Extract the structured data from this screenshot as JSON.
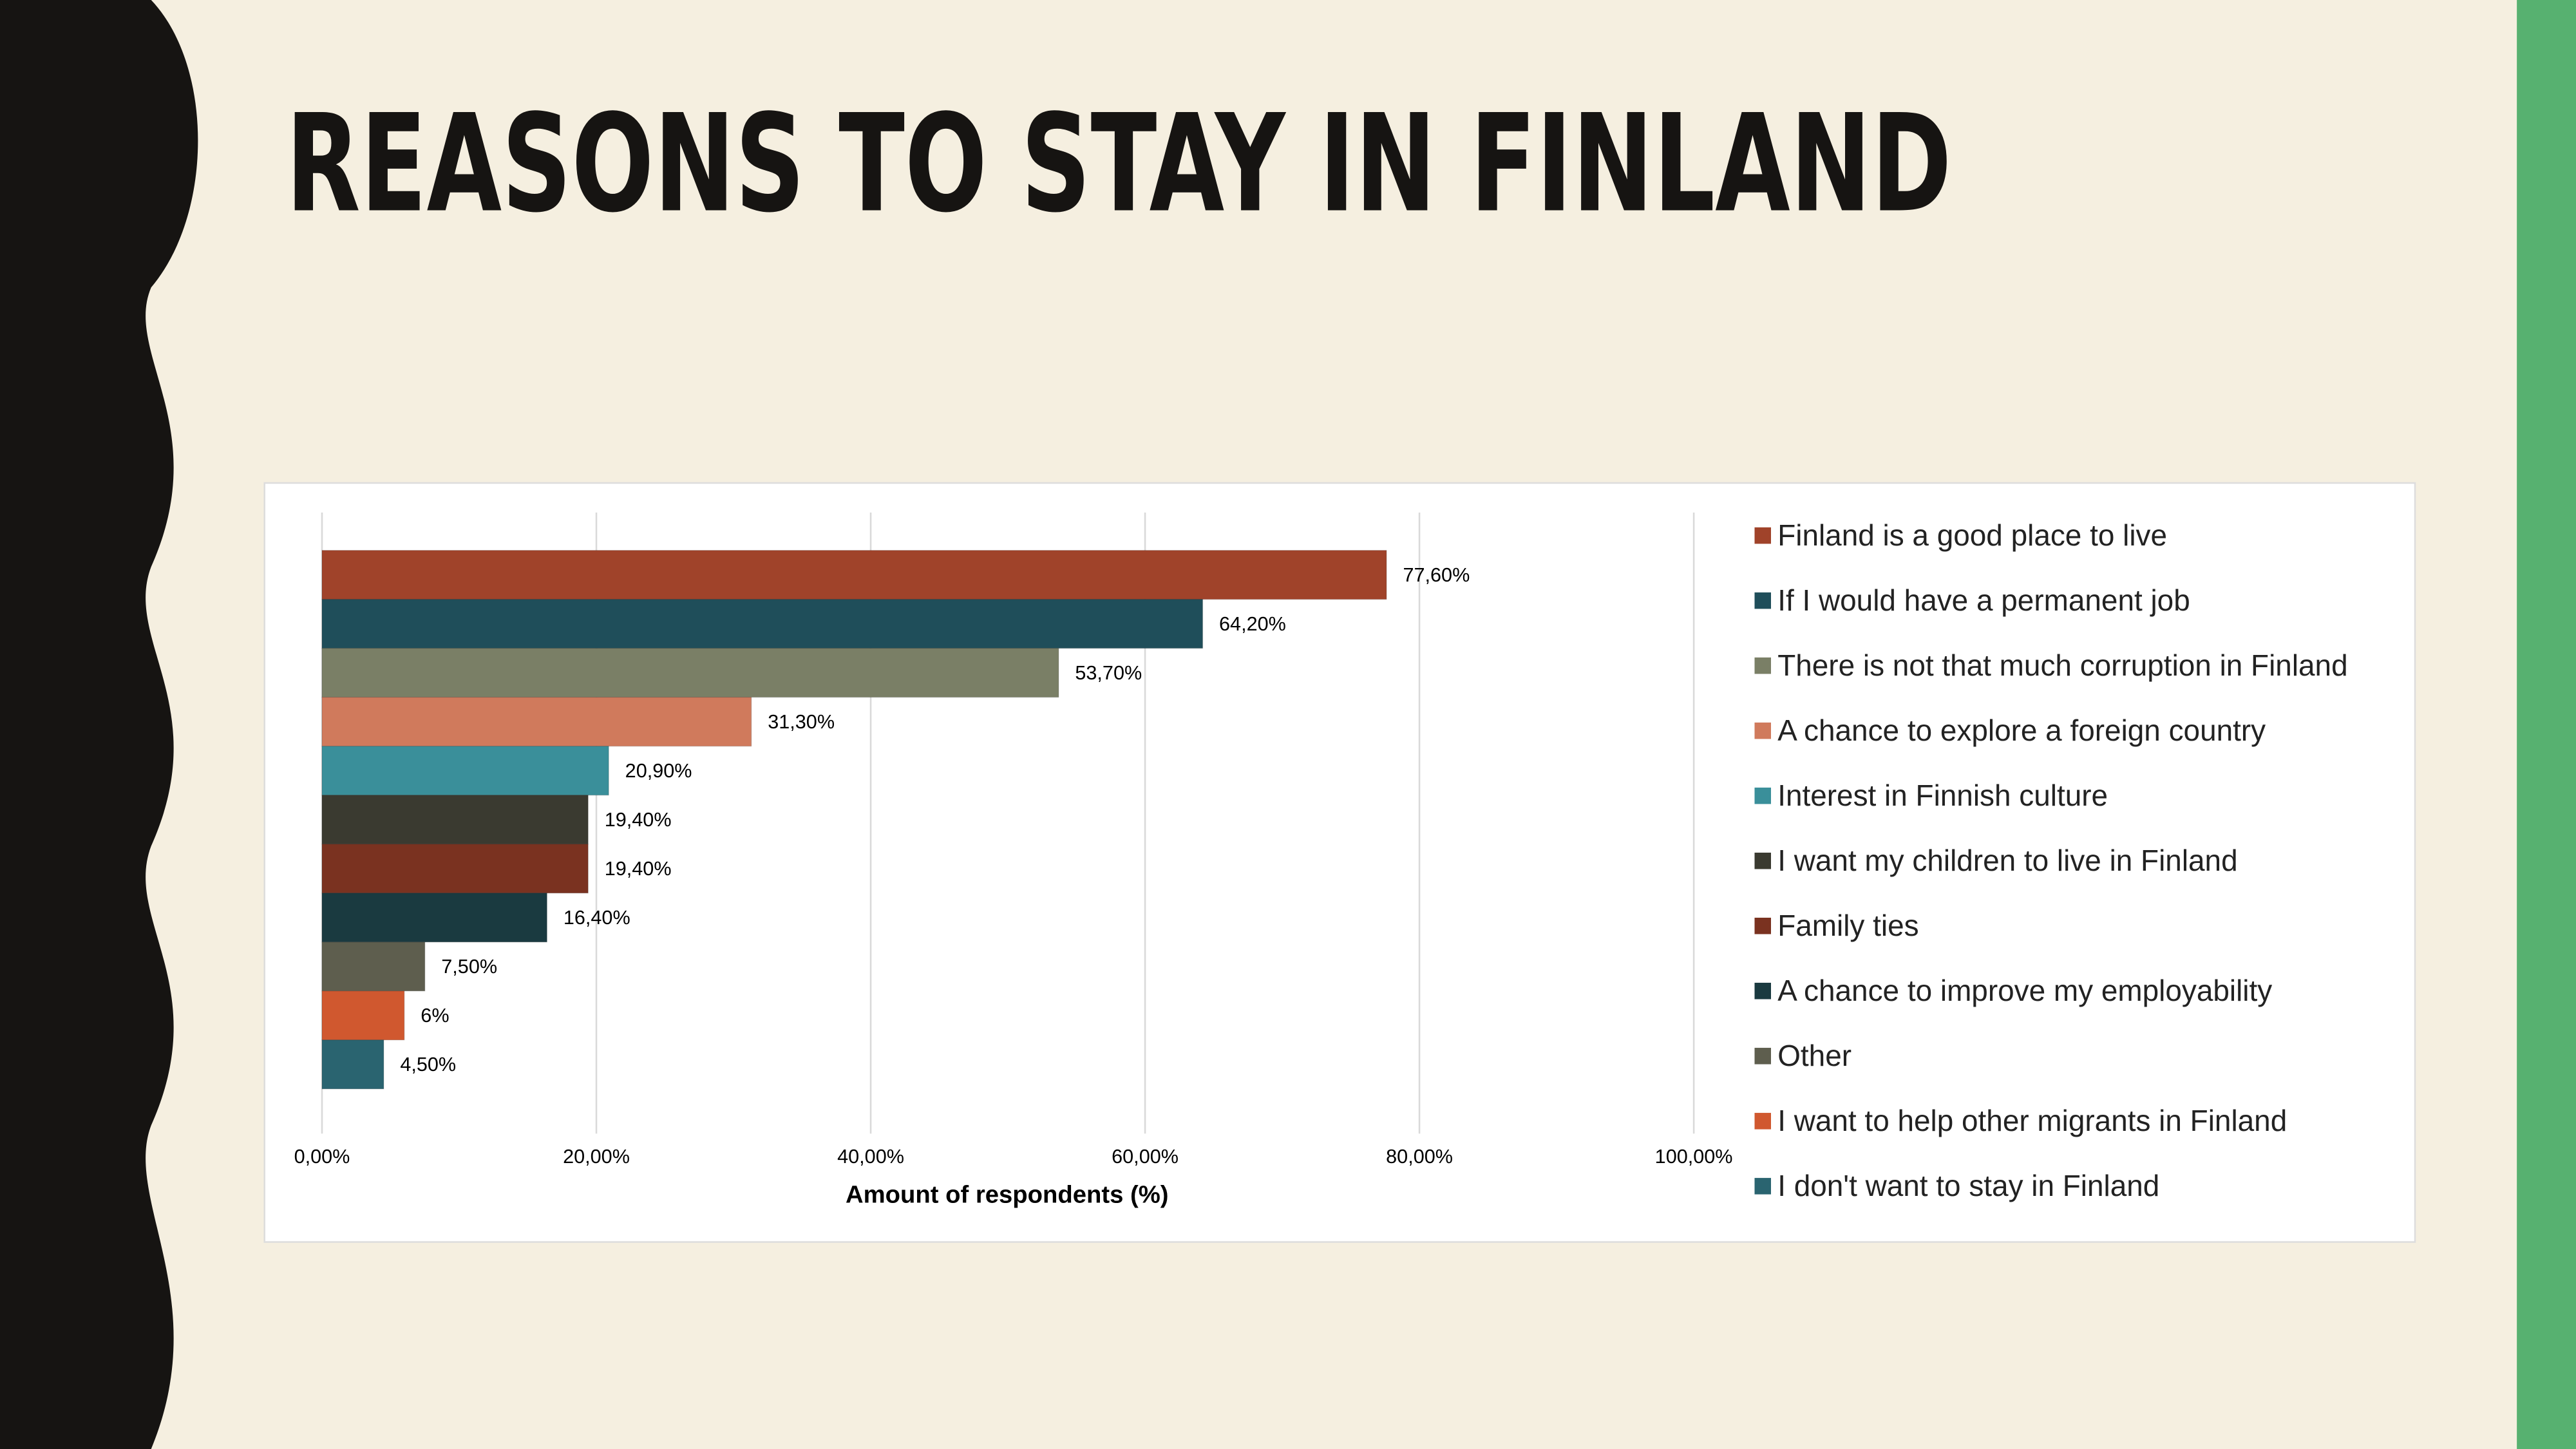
{
  "chart_data": {
    "type": "bar",
    "orientation": "horizontal",
    "title": "REASONS TO STAY IN FINLAND",
    "x_label": "Amount of respondents (%)",
    "xlim": [
      0,
      100
    ],
    "xticks": [
      {
        "value": 0,
        "label": "0,00%"
      },
      {
        "value": 20,
        "label": "20,00%"
      },
      {
        "value": 40,
        "label": "40,00%"
      },
      {
        "value": 60,
        "label": "60,00%"
      },
      {
        "value": 80,
        "label": "80,00%"
      },
      {
        "value": 100,
        "label": "100,00%"
      }
    ],
    "grid": true,
    "legend": "right",
    "series": [
      {
        "name": "Finland is a good place to live",
        "color": "#a0432a",
        "values": [
          77.6
        ],
        "value_labels": [
          "77,60%"
        ]
      },
      {
        "name": "If I would have a permanent job",
        "color": "#1f4e5a",
        "values": [
          64.2
        ],
        "value_labels": [
          "64,20%"
        ]
      },
      {
        "name": "There is not that much corruption in Finland",
        "color": "#7a7f66",
        "values": [
          53.7
        ],
        "value_labels": [
          "53,70%"
        ]
      },
      {
        "name": "A chance to explore a foreign country",
        "color": "#d07a5c",
        "values": [
          31.3
        ],
        "value_labels": [
          "31,30%"
        ]
      },
      {
        "name": "Interest in Finnish culture",
        "color": "#3a8f9a",
        "values": [
          20.9
        ],
        "value_labels": [
          "20,90%"
        ]
      },
      {
        "name": "I want my children to live in Finland",
        "color": "#3a3a30",
        "values": [
          19.4
        ],
        "value_labels": [
          "19,40%"
        ]
      },
      {
        "name": "Family ties",
        "color": "#7a3220",
        "values": [
          19.4
        ],
        "value_labels": [
          "19,40%"
        ]
      },
      {
        "name": "A chance to improve my employability",
        "color": "#1a3a40",
        "values": [
          16.4
        ],
        "value_labels": [
          "16,40%"
        ]
      },
      {
        "name": "Other",
        "color": "#5e5e4e",
        "values": [
          7.5
        ],
        "value_labels": [
          "7,50%"
        ]
      },
      {
        "name": "I want to help other migrants in Finland",
        "color": "#d0582f",
        "values": [
          6
        ],
        "value_labels": [
          "6%"
        ]
      },
      {
        "name": "I don't want to stay in Finland",
        "color": "#2a6470",
        "values": [
          4.5
        ],
        "value_labels": [
          "4,50%"
        ]
      }
    ]
  }
}
